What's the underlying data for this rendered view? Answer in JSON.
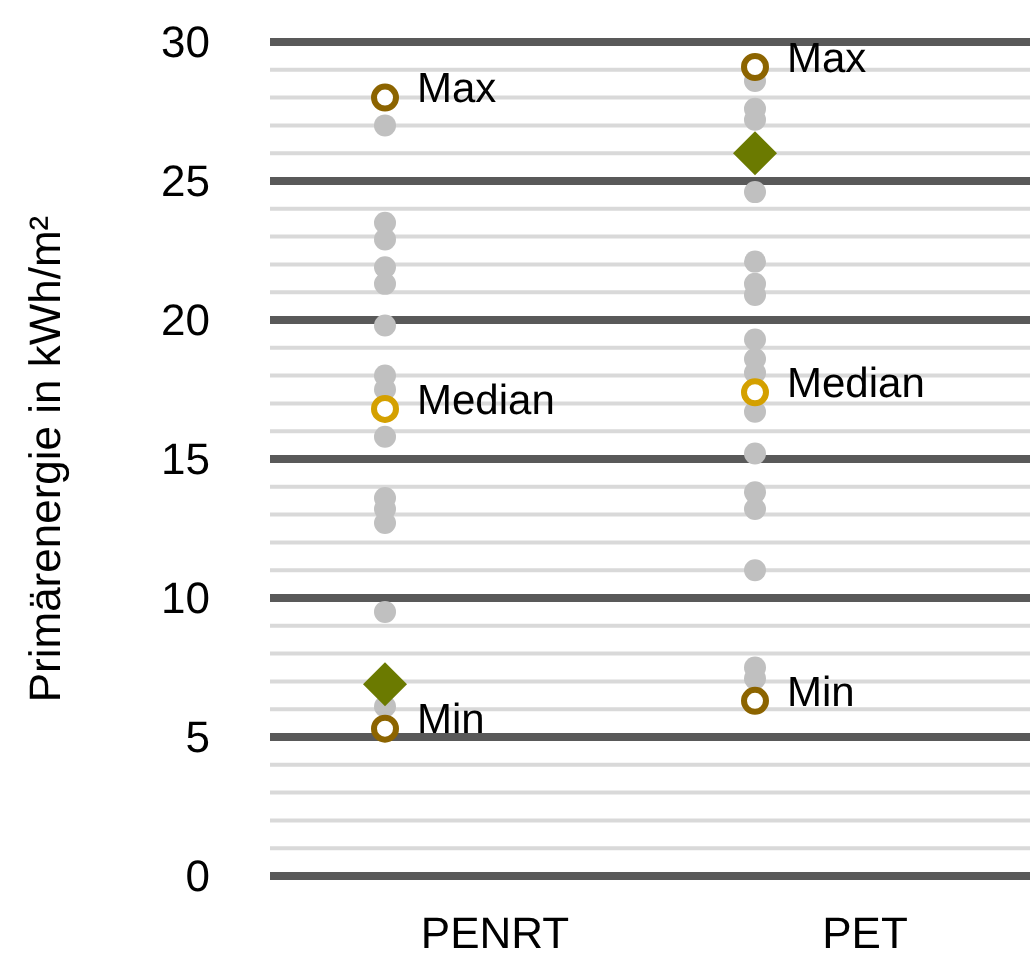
{
  "chart_data": {
    "type": "scatter",
    "ylabel": "Primärenergie  in kWh/m²",
    "categories": [
      "PENRT",
      "PET"
    ],
    "ylim": [
      0,
      30
    ],
    "yticks": [
      0,
      5,
      10,
      15,
      20,
      25,
      30
    ],
    "grid": "y",
    "series": [
      {
        "color": "#c0c0c0",
        "marker": "circle",
        "x": [
          "PENRT",
          "PENRT",
          "PENRT",
          "PENRT",
          "PENRT",
          "PENRT",
          "PENRT",
          "PENRT",
          "PENRT",
          "PENRT",
          "PENRT",
          "PENRT",
          "PENRT",
          "PENRT",
          "PET",
          "PET",
          "PET",
          "PET",
          "PET",
          "PET",
          "PET",
          "PET",
          "PET",
          "PET",
          "PET",
          "PET",
          "PET",
          "PET",
          "PET",
          "PET",
          "PET"
        ],
        "values": [
          27.0,
          23.5,
          22.9,
          21.9,
          21.3,
          19.8,
          18.0,
          17.5,
          15.8,
          13.6,
          13.2,
          12.7,
          9.5,
          6.1,
          28.6,
          27.6,
          27.2,
          24.6,
          22.1,
          21.3,
          20.9,
          19.3,
          18.6,
          18.1,
          16.7,
          15.2,
          13.8,
          13.2,
          11.0,
          7.5,
          7.1
        ]
      },
      {
        "name": "Max",
        "color": "#8c6400",
        "marker": "circle",
        "values": [
          28.0,
          29.1
        ]
      },
      {
        "name": "Median",
        "color": "#d4a000",
        "marker": "circle",
        "values": [
          16.8,
          17.4
        ]
      },
      {
        "name": "Min",
        "color": "#8c6400",
        "marker": "circle",
        "values": [
          5.3,
          6.3
        ]
      },
      {
        "color": "#6b7a00",
        "marker": "diamond",
        "values": [
          6.9,
          26.0
        ]
      }
    ]
  }
}
